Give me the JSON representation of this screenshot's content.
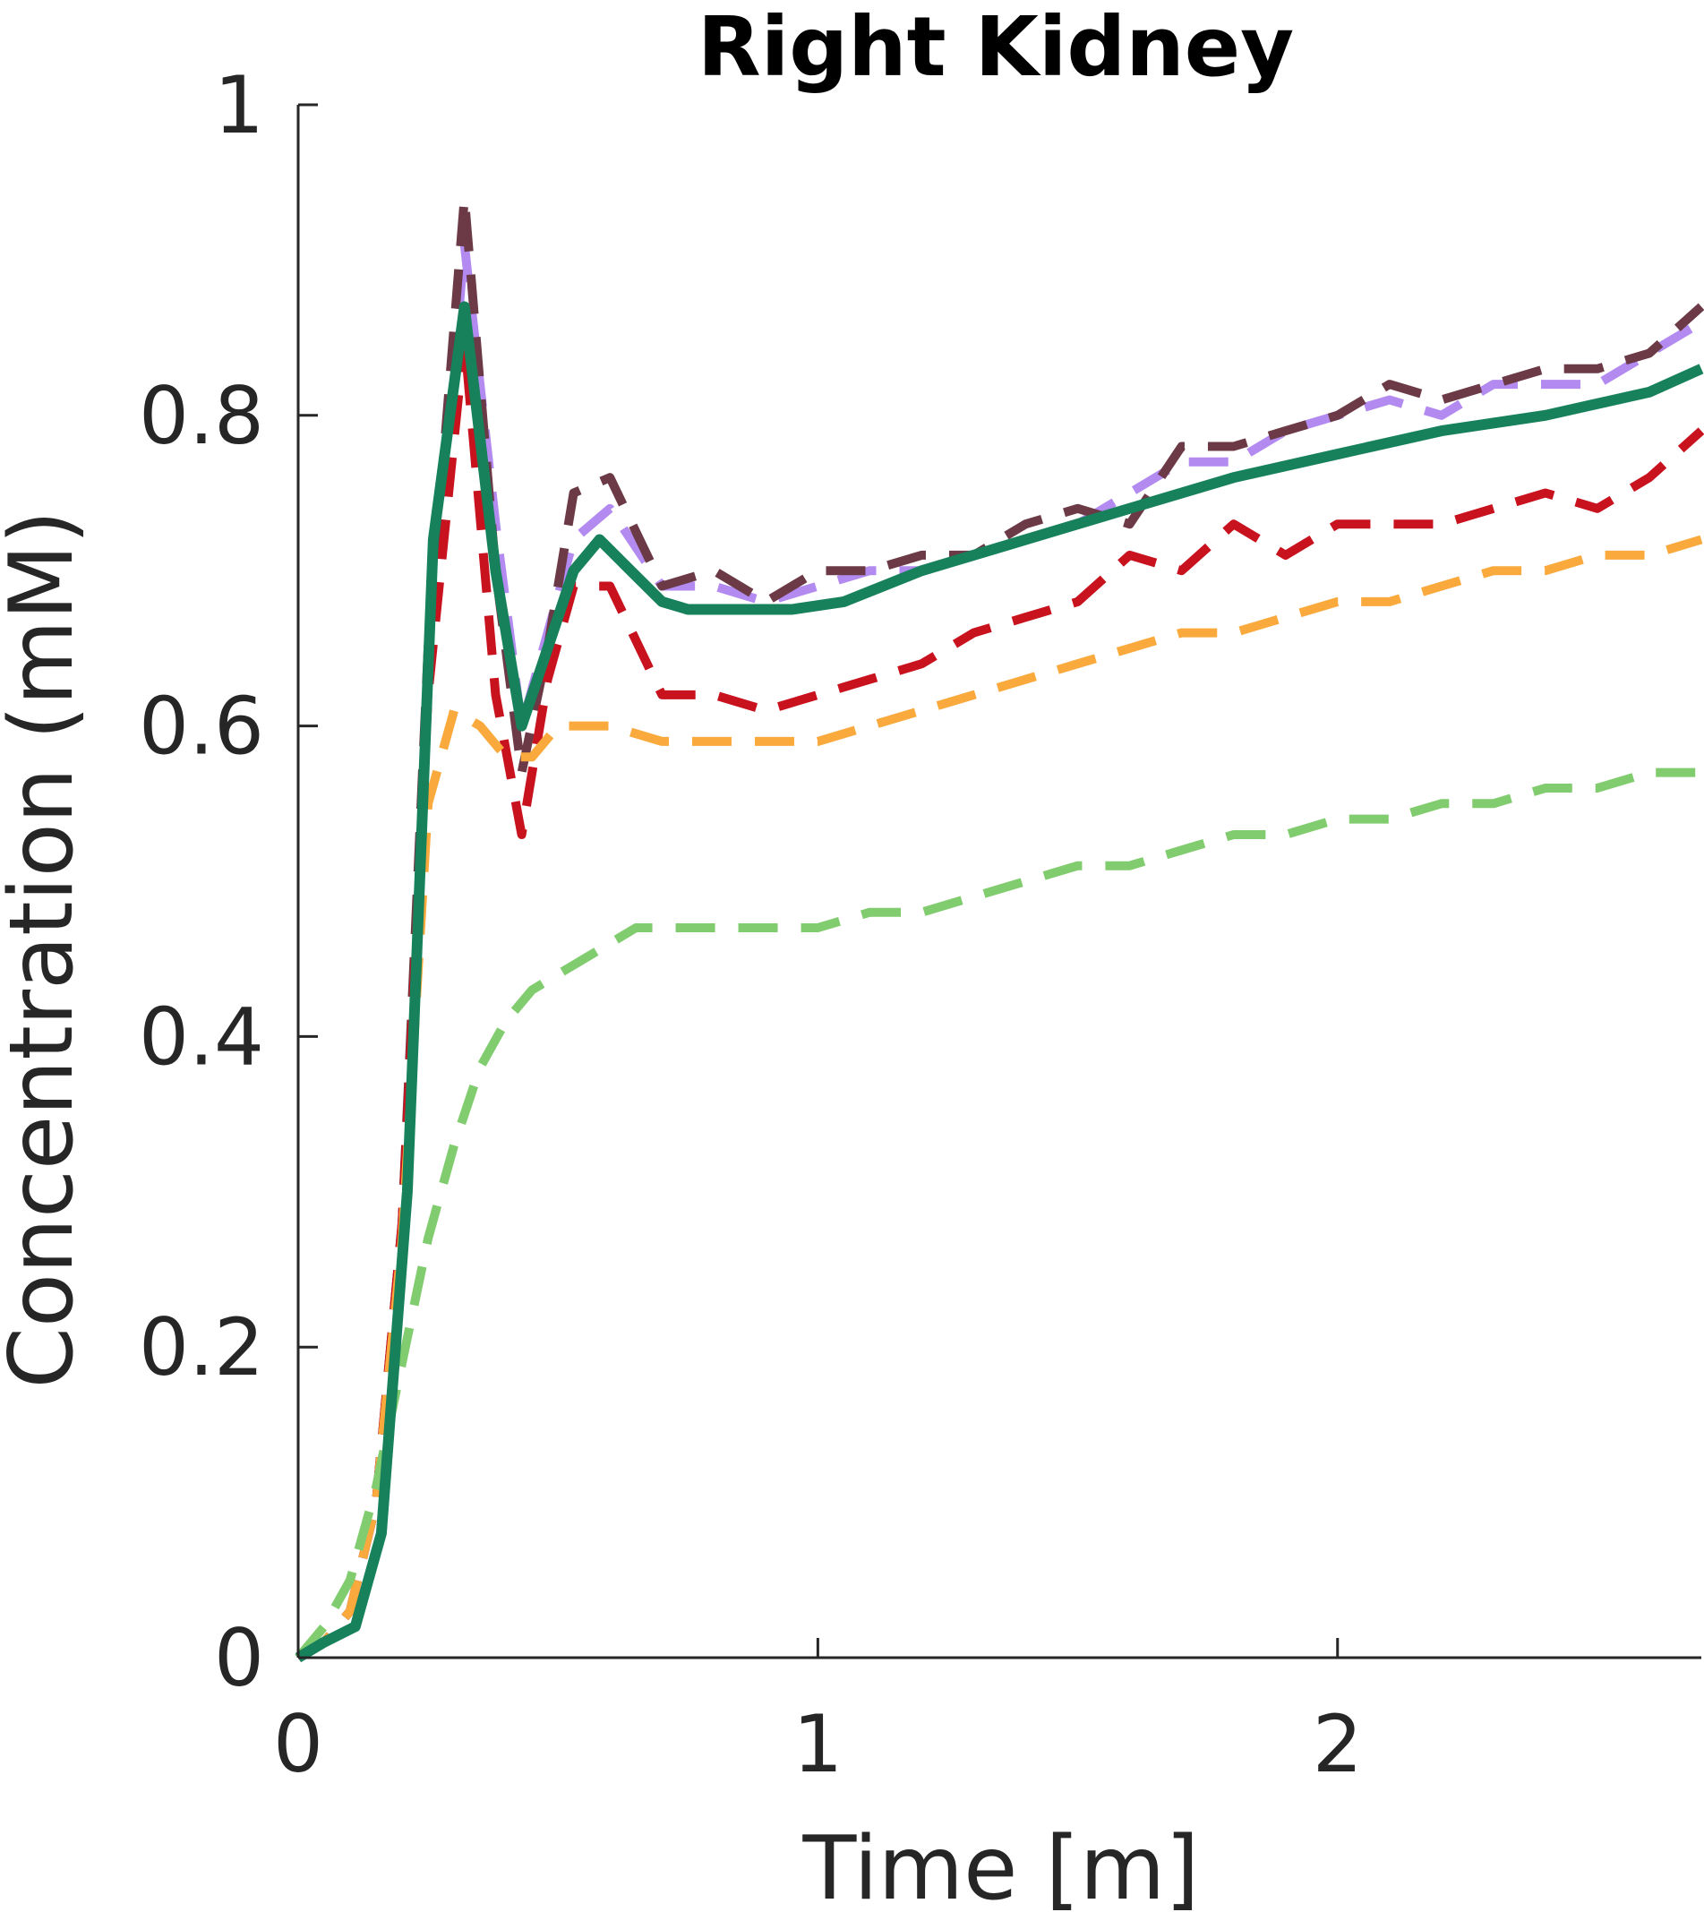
{
  "chart_data": {
    "type": "line",
    "title": "Right Kidney",
    "xlabel": "Time [m]",
    "ylabel": "Concentration (mM)",
    "xlim": [
      0,
      2.7
    ],
    "ylim": [
      0,
      1
    ],
    "xticks": [
      0,
      1,
      2
    ],
    "xtick_labels": [
      "0",
      "1",
      "2"
    ],
    "yticks": [
      0,
      0.2,
      0.4,
      0.6,
      0.8,
      1
    ],
    "ytick_labels": [
      "0",
      "0.2",
      "0.4",
      "0.6",
      "0.8",
      "1"
    ],
    "grid": false,
    "series": [
      {
        "color": "#b38af0",
        "style": "dashed",
        "x": [
          0,
          0.05,
          0.1,
          0.15,
          0.2,
          0.25,
          0.32,
          0.38,
          0.43,
          0.48,
          0.53,
          0.6,
          0.7,
          0.8,
          0.9,
          1.0,
          1.1,
          1.2,
          1.3,
          1.4,
          1.5,
          1.6,
          1.7,
          1.8,
          1.9,
          2.0,
          2.1,
          2.2,
          2.3,
          2.4,
          2.5,
          2.6,
          2.7
        ],
        "y": [
          0,
          0.01,
          0.03,
          0.1,
          0.28,
          0.63,
          0.91,
          0.73,
          0.6,
          0.66,
          0.72,
          0.74,
          0.69,
          0.69,
          0.68,
          0.69,
          0.7,
          0.7,
          0.71,
          0.72,
          0.73,
          0.75,
          0.77,
          0.77,
          0.79,
          0.8,
          0.81,
          0.8,
          0.82,
          0.82,
          0.82,
          0.84,
          0.86
        ]
      },
      {
        "color": "#6b3a46",
        "style": "dashed",
        "x": [
          0,
          0.05,
          0.1,
          0.15,
          0.2,
          0.25,
          0.32,
          0.38,
          0.43,
          0.48,
          0.53,
          0.6,
          0.7,
          0.8,
          0.9,
          1.0,
          1.1,
          1.2,
          1.3,
          1.4,
          1.5,
          1.6,
          1.7,
          1.8,
          1.9,
          2.0,
          2.1,
          2.2,
          2.3,
          2.4,
          2.5,
          2.6,
          2.7
        ],
        "y": [
          0,
          0.01,
          0.03,
          0.1,
          0.28,
          0.65,
          0.94,
          0.7,
          0.57,
          0.65,
          0.75,
          0.76,
          0.69,
          0.7,
          0.68,
          0.7,
          0.7,
          0.71,
          0.71,
          0.73,
          0.74,
          0.73,
          0.78,
          0.78,
          0.79,
          0.8,
          0.82,
          0.81,
          0.82,
          0.83,
          0.83,
          0.84,
          0.87
        ]
      },
      {
        "color": "#c8121e",
        "style": "dashed",
        "x": [
          0,
          0.05,
          0.1,
          0.15,
          0.2,
          0.25,
          0.32,
          0.38,
          0.43,
          0.48,
          0.53,
          0.6,
          0.7,
          0.8,
          0.9,
          1.0,
          1.1,
          1.2,
          1.3,
          1.4,
          1.5,
          1.6,
          1.7,
          1.8,
          1.9,
          2.0,
          2.1,
          2.2,
          2.3,
          2.4,
          2.5,
          2.6,
          2.7
        ],
        "y": [
          0,
          0.01,
          0.03,
          0.1,
          0.28,
          0.62,
          0.85,
          0.62,
          0.53,
          0.63,
          0.69,
          0.69,
          0.62,
          0.62,
          0.61,
          0.62,
          0.63,
          0.64,
          0.66,
          0.67,
          0.68,
          0.71,
          0.7,
          0.73,
          0.71,
          0.73,
          0.73,
          0.73,
          0.74,
          0.75,
          0.74,
          0.76,
          0.79
        ]
      },
      {
        "color": "#faa93c",
        "style": "dashed",
        "x": [
          0,
          0.05,
          0.1,
          0.15,
          0.2,
          0.25,
          0.3,
          0.35,
          0.4,
          0.45,
          0.5,
          0.55,
          0.6,
          0.7,
          0.8,
          0.9,
          1.0,
          1.1,
          1.2,
          1.3,
          1.4,
          1.5,
          1.6,
          1.7,
          1.8,
          1.9,
          2.0,
          2.1,
          2.2,
          2.3,
          2.4,
          2.5,
          2.6,
          2.7
        ],
        "y": [
          0,
          0.01,
          0.03,
          0.1,
          0.27,
          0.55,
          0.61,
          0.6,
          0.58,
          0.58,
          0.6,
          0.6,
          0.6,
          0.59,
          0.59,
          0.59,
          0.59,
          0.6,
          0.61,
          0.62,
          0.63,
          0.64,
          0.65,
          0.66,
          0.66,
          0.67,
          0.68,
          0.68,
          0.69,
          0.7,
          0.7,
          0.71,
          0.71,
          0.72
        ]
      },
      {
        "color": "#80cc6e",
        "style": "dashed",
        "x": [
          0,
          0.05,
          0.1,
          0.15,
          0.2,
          0.25,
          0.3,
          0.35,
          0.4,
          0.45,
          0.5,
          0.55,
          0.6,
          0.65,
          0.7,
          0.75,
          0.8,
          0.9,
          1.0,
          1.1,
          1.2,
          1.3,
          1.4,
          1.5,
          1.6,
          1.7,
          1.8,
          1.9,
          2.0,
          2.1,
          2.2,
          2.3,
          2.4,
          2.5,
          2.6,
          2.7
        ],
        "y": [
          0,
          0.02,
          0.05,
          0.11,
          0.19,
          0.27,
          0.33,
          0.38,
          0.41,
          0.43,
          0.44,
          0.45,
          0.46,
          0.47,
          0.47,
          0.47,
          0.47,
          0.47,
          0.47,
          0.48,
          0.48,
          0.49,
          0.5,
          0.51,
          0.51,
          0.52,
          0.53,
          0.53,
          0.54,
          0.54,
          0.55,
          0.55,
          0.56,
          0.56,
          0.57,
          0.57
        ]
      },
      {
        "color": "#17815c",
        "style": "solid",
        "x": [
          0,
          0.05,
          0.11,
          0.16,
          0.21,
          0.26,
          0.32,
          0.38,
          0.43,
          0.48,
          0.53,
          0.58,
          0.64,
          0.7,
          0.75,
          0.85,
          0.95,
          1.05,
          1.2,
          1.4,
          1.6,
          1.8,
          2.0,
          2.2,
          2.4,
          2.6,
          2.7
        ],
        "y": [
          0,
          0.01,
          0.02,
          0.08,
          0.3,
          0.72,
          0.87,
          0.7,
          0.6,
          0.65,
          0.7,
          0.72,
          0.7,
          0.68,
          0.675,
          0.675,
          0.675,
          0.68,
          0.7,
          0.72,
          0.74,
          0.76,
          0.775,
          0.79,
          0.8,
          0.815,
          0.83
        ]
      }
    ]
  }
}
